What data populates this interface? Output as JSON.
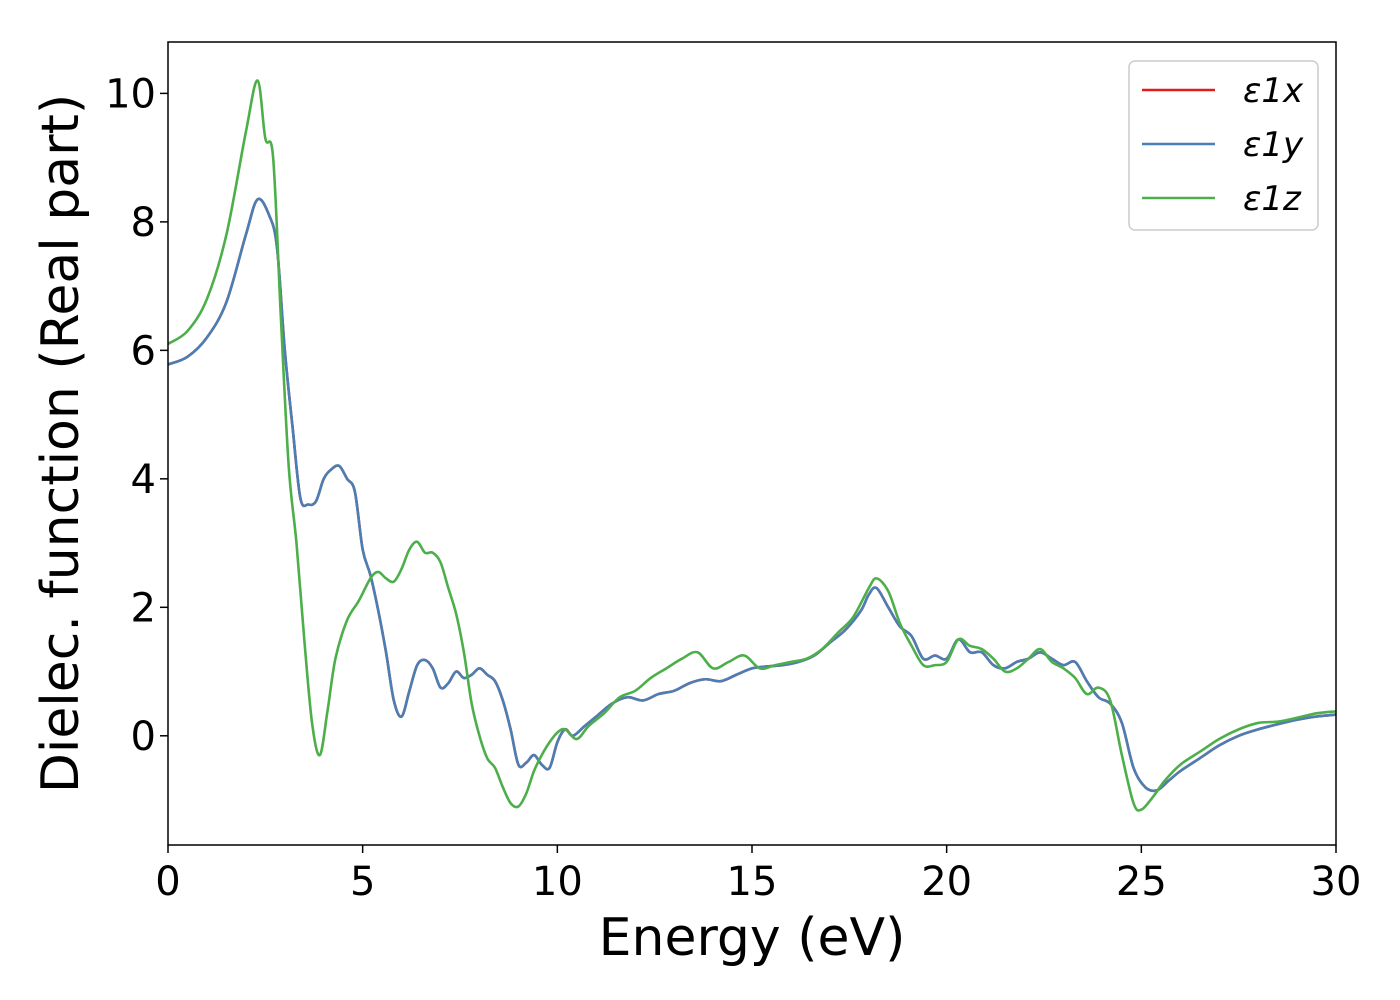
{
  "chart_data": {
    "type": "line",
    "title": "",
    "xlabel": "Energy (eV)",
    "ylabel": "Dielec. function (Real part)",
    "xlim": [
      0,
      30
    ],
    "ylim": [
      -1.7,
      10.8
    ],
    "xticks": [
      0,
      5,
      10,
      15,
      20,
      25,
      30
    ],
    "yticks": [
      0,
      2,
      4,
      6,
      8,
      10
    ],
    "grid": false,
    "legend_position": "top-right",
    "series": [
      {
        "name": "ε1x",
        "color": "#e41a1c",
        "x": [
          0,
          0.5,
          1,
          1.5,
          2,
          2.3,
          2.6,
          2.8,
          3,
          3.2,
          3.4,
          3.6,
          3.8,
          4,
          4.2,
          4.4,
          4.6,
          4.8,
          5,
          5.2,
          5.4,
          5.6,
          5.8,
          6,
          6.2,
          6.4,
          6.6,
          6.8,
          7,
          7.2,
          7.4,
          7.6,
          7.8,
          8,
          8.2,
          8.4,
          8.6,
          8.8,
          9,
          9.2,
          9.4,
          9.6,
          9.8,
          10,
          10.2,
          10.4,
          10.7,
          11,
          11.4,
          11.8,
          12.2,
          12.6,
          13,
          13.4,
          13.8,
          14.2,
          14.6,
          15,
          15.4,
          15.8,
          16.2,
          16.6,
          17,
          17.4,
          17.8,
          18,
          18.2,
          18.5,
          18.8,
          19.1,
          19.4,
          19.7,
          20,
          20.3,
          20.6,
          20.9,
          21.2,
          21.5,
          21.8,
          22.1,
          22.4,
          22.7,
          23,
          23.3,
          23.6,
          23.9,
          24.2,
          24.5,
          24.8,
          25.1,
          25.4,
          25.7,
          26,
          26.5,
          27,
          27.5,
          28,
          28.5,
          29,
          29.5,
          30
        ],
        "y": [
          5.78,
          5.9,
          6.2,
          6.75,
          7.8,
          8.35,
          8.1,
          7.6,
          6.0,
          4.8,
          3.7,
          3.6,
          3.65,
          4.0,
          4.15,
          4.2,
          4.0,
          3.8,
          2.9,
          2.5,
          1.95,
          1.3,
          0.55,
          0.3,
          0.7,
          1.1,
          1.18,
          1.05,
          0.75,
          0.82,
          1.0,
          0.9,
          0.95,
          1.05,
          0.95,
          0.85,
          0.55,
          0.1,
          -0.45,
          -0.42,
          -0.3,
          -0.45,
          -0.5,
          -0.1,
          0.1,
          0.0,
          0.15,
          0.3,
          0.5,
          0.6,
          0.55,
          0.65,
          0.7,
          0.82,
          0.88,
          0.85,
          0.95,
          1.05,
          1.08,
          1.1,
          1.15,
          1.25,
          1.45,
          1.65,
          1.95,
          2.2,
          2.3,
          2.0,
          1.7,
          1.55,
          1.2,
          1.25,
          1.2,
          1.5,
          1.3,
          1.3,
          1.1,
          1.05,
          1.15,
          1.2,
          1.3,
          1.2,
          1.1,
          1.15,
          0.85,
          0.6,
          0.5,
          0.2,
          -0.5,
          -0.8,
          -0.85,
          -0.7,
          -0.55,
          -0.35,
          -0.15,
          0.0,
          0.1,
          0.18,
          0.25,
          0.3,
          0.33
        ]
      },
      {
        "name": "ε1y",
        "color": "#4a7fb5",
        "x": [
          0,
          0.5,
          1,
          1.5,
          2,
          2.3,
          2.6,
          2.8,
          3,
          3.2,
          3.4,
          3.6,
          3.8,
          4,
          4.2,
          4.4,
          4.6,
          4.8,
          5,
          5.2,
          5.4,
          5.6,
          5.8,
          6,
          6.2,
          6.4,
          6.6,
          6.8,
          7,
          7.2,
          7.4,
          7.6,
          7.8,
          8,
          8.2,
          8.4,
          8.6,
          8.8,
          9,
          9.2,
          9.4,
          9.6,
          9.8,
          10,
          10.2,
          10.4,
          10.7,
          11,
          11.4,
          11.8,
          12.2,
          12.6,
          13,
          13.4,
          13.8,
          14.2,
          14.6,
          15,
          15.4,
          15.8,
          16.2,
          16.6,
          17,
          17.4,
          17.8,
          18,
          18.2,
          18.5,
          18.8,
          19.1,
          19.4,
          19.7,
          20,
          20.3,
          20.6,
          20.9,
          21.2,
          21.5,
          21.8,
          22.1,
          22.4,
          22.7,
          23,
          23.3,
          23.6,
          23.9,
          24.2,
          24.5,
          24.8,
          25.1,
          25.4,
          25.7,
          26,
          26.5,
          27,
          27.5,
          28,
          28.5,
          29,
          29.5,
          30
        ],
        "y": [
          5.78,
          5.9,
          6.2,
          6.75,
          7.8,
          8.35,
          8.1,
          7.6,
          6.0,
          4.8,
          3.7,
          3.6,
          3.65,
          4.0,
          4.15,
          4.2,
          4.0,
          3.8,
          2.9,
          2.5,
          1.95,
          1.3,
          0.55,
          0.3,
          0.7,
          1.1,
          1.18,
          1.05,
          0.75,
          0.82,
          1.0,
          0.9,
          0.95,
          1.05,
          0.95,
          0.85,
          0.55,
          0.1,
          -0.45,
          -0.42,
          -0.3,
          -0.45,
          -0.5,
          -0.1,
          0.1,
          0.0,
          0.15,
          0.3,
          0.5,
          0.6,
          0.55,
          0.65,
          0.7,
          0.82,
          0.88,
          0.85,
          0.95,
          1.05,
          1.08,
          1.1,
          1.15,
          1.25,
          1.45,
          1.65,
          1.95,
          2.2,
          2.3,
          2.0,
          1.7,
          1.55,
          1.2,
          1.25,
          1.2,
          1.5,
          1.3,
          1.3,
          1.1,
          1.05,
          1.15,
          1.2,
          1.3,
          1.2,
          1.1,
          1.15,
          0.85,
          0.6,
          0.5,
          0.2,
          -0.5,
          -0.8,
          -0.85,
          -0.7,
          -0.55,
          -0.35,
          -0.15,
          0.0,
          0.1,
          0.18,
          0.25,
          0.3,
          0.33
        ]
      },
      {
        "name": "ε1z",
        "color": "#4daf4a",
        "x": [
          0,
          0.5,
          1,
          1.5,
          2,
          2.3,
          2.5,
          2.7,
          2.9,
          3.1,
          3.3,
          3.5,
          3.7,
          3.9,
          4.1,
          4.3,
          4.6,
          4.9,
          5.2,
          5.4,
          5.6,
          5.8,
          6.0,
          6.2,
          6.4,
          6.6,
          6.8,
          7.0,
          7.2,
          7.4,
          7.6,
          7.8,
          8.0,
          8.2,
          8.4,
          8.6,
          8.8,
          9.0,
          9.2,
          9.4,
          9.6,
          9.8,
          10.0,
          10.2,
          10.5,
          10.8,
          11.2,
          11.6,
          12.0,
          12.4,
          12.8,
          13.2,
          13.6,
          14.0,
          14.4,
          14.8,
          15.2,
          15.6,
          16.0,
          16.4,
          16.8,
          17.2,
          17.6,
          18.0,
          18.2,
          18.5,
          18.8,
          19.1,
          19.4,
          19.7,
          20.0,
          20.3,
          20.6,
          20.9,
          21.2,
          21.5,
          21.8,
          22.1,
          22.4,
          22.7,
          23.0,
          23.3,
          23.6,
          23.9,
          24.2,
          24.5,
          24.8,
          25.0,
          25.3,
          25.6,
          26.0,
          26.5,
          27.0,
          27.5,
          28.0,
          28.5,
          29.0,
          29.5,
          30.0
        ],
        "y": [
          6.1,
          6.3,
          6.8,
          7.8,
          9.4,
          10.2,
          9.3,
          9.0,
          6.5,
          4.2,
          3.0,
          1.5,
          0.2,
          -0.3,
          0.4,
          1.2,
          1.8,
          2.1,
          2.45,
          2.55,
          2.45,
          2.4,
          2.6,
          2.9,
          3.02,
          2.85,
          2.85,
          2.7,
          2.3,
          1.9,
          1.3,
          0.5,
          0.0,
          -0.35,
          -0.5,
          -0.8,
          -1.05,
          -1.1,
          -0.9,
          -0.55,
          -0.3,
          -0.1,
          0.05,
          0.1,
          -0.05,
          0.15,
          0.35,
          0.6,
          0.7,
          0.9,
          1.05,
          1.2,
          1.3,
          1.05,
          1.15,
          1.25,
          1.05,
          1.1,
          1.15,
          1.2,
          1.35,
          1.6,
          1.85,
          2.3,
          2.45,
          2.25,
          1.75,
          1.4,
          1.1,
          1.1,
          1.15,
          1.5,
          1.4,
          1.35,
          1.2,
          1.0,
          1.05,
          1.2,
          1.35,
          1.15,
          1.05,
          0.9,
          0.65,
          0.75,
          0.55,
          -0.3,
          -1.05,
          -1.15,
          -0.95,
          -0.7,
          -0.45,
          -0.25,
          -0.05,
          0.1,
          0.2,
          0.22,
          0.28,
          0.35,
          0.38
        ]
      }
    ]
  }
}
